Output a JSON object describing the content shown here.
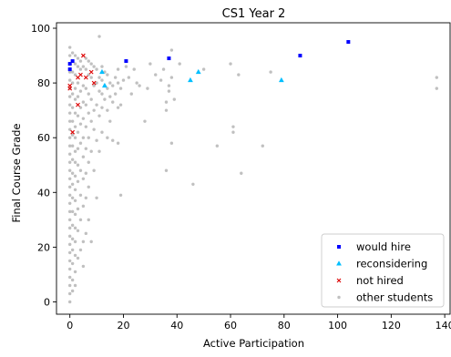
{
  "chart_data": {
    "type": "scatter",
    "title": "CS1 Year 2",
    "xlabel": "Active Participation",
    "ylabel": "Final Course Grade",
    "xlim": [
      -5,
      142
    ],
    "ylim": [
      -4.5,
      102
    ],
    "xticks": [
      0,
      20,
      40,
      60,
      80,
      100,
      120,
      140
    ],
    "yticks": [
      0,
      20,
      40,
      60,
      80,
      100
    ],
    "grid": false,
    "legend_position": "lower-right",
    "series": [
      {
        "name": "would hire",
        "marker": "square",
        "color": "#0000ff",
        "points": [
          [
            0,
            85
          ],
          [
            0,
            87
          ],
          [
            1,
            88
          ],
          [
            21,
            88
          ],
          [
            37,
            89
          ],
          [
            86,
            90
          ],
          [
            104,
            95
          ]
        ]
      },
      {
        "name": "reconsidering",
        "marker": "triangle",
        "color": "#00bfff",
        "points": [
          [
            12,
            84
          ],
          [
            13,
            79
          ],
          [
            45,
            81
          ],
          [
            48,
            84
          ],
          [
            79,
            81
          ]
        ]
      },
      {
        "name": "not hired",
        "marker": "x",
        "color": "#dd0000",
        "points": [
          [
            0,
            78
          ],
          [
            0,
            79
          ],
          [
            1,
            62
          ],
          [
            3,
            82
          ],
          [
            3,
            72
          ],
          [
            4,
            83
          ],
          [
            5,
            90
          ],
          [
            6,
            82
          ],
          [
            8,
            84
          ],
          [
            9,
            80
          ]
        ]
      },
      {
        "name": "other students",
        "marker": "dot",
        "color": "#c0c0c0",
        "points": [
          [
            0,
            0
          ],
          [
            0,
            3
          ],
          [
            0,
            6
          ],
          [
            0,
            9
          ],
          [
            0,
            12
          ],
          [
            0,
            15
          ],
          [
            0,
            18
          ],
          [
            0,
            21
          ],
          [
            0,
            24
          ],
          [
            0,
            27
          ],
          [
            0,
            30
          ],
          [
            0,
            33
          ],
          [
            0,
            36
          ],
          [
            0,
            39
          ],
          [
            0,
            42
          ],
          [
            0,
            45
          ],
          [
            0,
            48
          ],
          [
            0,
            51
          ],
          [
            0,
            54
          ],
          [
            0,
            57
          ],
          [
            0,
            60
          ],
          [
            0,
            63
          ],
          [
            0,
            66
          ],
          [
            0,
            69
          ],
          [
            0,
            72
          ],
          [
            0,
            75
          ],
          [
            0,
            78
          ],
          [
            0,
            81
          ],
          [
            0,
            84
          ],
          [
            0,
            87
          ],
          [
            0,
            90
          ],
          [
            0,
            93
          ],
          [
            1,
            4
          ],
          [
            1,
            8
          ],
          [
            1,
            14
          ],
          [
            1,
            19
          ],
          [
            1,
            23
          ],
          [
            1,
            28
          ],
          [
            1,
            33
          ],
          [
            1,
            38
          ],
          [
            1,
            43
          ],
          [
            1,
            47
          ],
          [
            1,
            52
          ],
          [
            1,
            57
          ],
          [
            1,
            61
          ],
          [
            1,
            66
          ],
          [
            1,
            71
          ],
          [
            1,
            76
          ],
          [
            1,
            80
          ],
          [
            1,
            84
          ],
          [
            1,
            88
          ],
          [
            1,
            91
          ],
          [
            2,
            6
          ],
          [
            2,
            11
          ],
          [
            2,
            17
          ],
          [
            2,
            22
          ],
          [
            2,
            27
          ],
          [
            2,
            32
          ],
          [
            2,
            37
          ],
          [
            2,
            41
          ],
          [
            2,
            46
          ],
          [
            2,
            51
          ],
          [
            2,
            55
          ],
          [
            2,
            60
          ],
          [
            2,
            64
          ],
          [
            2,
            69
          ],
          [
            2,
            74
          ],
          [
            2,
            78
          ],
          [
            2,
            83
          ],
          [
            2,
            87
          ],
          [
            2,
            90
          ],
          [
            3,
            16
          ],
          [
            3,
            26
          ],
          [
            3,
            34
          ],
          [
            3,
            44
          ],
          [
            3,
            50
          ],
          [
            3,
            56
          ],
          [
            3,
            62
          ],
          [
            3,
            68
          ],
          [
            3,
            75
          ],
          [
            3,
            80
          ],
          [
            3,
            86
          ],
          [
            3,
            89
          ],
          [
            4,
            19
          ],
          [
            4,
            30
          ],
          [
            4,
            39
          ],
          [
            4,
            48
          ],
          [
            4,
            58
          ],
          [
            4,
            65
          ],
          [
            4,
            71
          ],
          [
            4,
            77
          ],
          [
            4,
            85
          ],
          [
            4,
            88
          ],
          [
            5,
            13
          ],
          [
            5,
            22
          ],
          [
            5,
            35
          ],
          [
            5,
            45
          ],
          [
            5,
            53
          ],
          [
            5,
            60
          ],
          [
            5,
            67
          ],
          [
            5,
            73
          ],
          [
            5,
            79
          ],
          [
            5,
            86
          ],
          [
            6,
            25
          ],
          [
            6,
            38
          ],
          [
            6,
            47
          ],
          [
            6,
            56
          ],
          [
            6,
            64
          ],
          [
            6,
            72
          ],
          [
            6,
            78
          ],
          [
            6,
            85
          ],
          [
            6,
            89
          ],
          [
            7,
            30
          ],
          [
            7,
            42
          ],
          [
            7,
            51
          ],
          [
            7,
            60
          ],
          [
            7,
            69
          ],
          [
            7,
            76
          ],
          [
            7,
            83
          ],
          [
            7,
            88
          ],
          [
            8,
            22
          ],
          [
            8,
            55
          ],
          [
            8,
            66
          ],
          [
            8,
            74
          ],
          [
            8,
            82
          ],
          [
            8,
            87
          ],
          [
            9,
            48
          ],
          [
            9,
            63
          ],
          [
            9,
            70
          ],
          [
            9,
            79
          ],
          [
            9,
            86
          ],
          [
            10,
            38
          ],
          [
            10,
            59
          ],
          [
            10,
            72
          ],
          [
            10,
            80
          ],
          [
            10,
            85
          ],
          [
            11,
            55
          ],
          [
            11,
            68
          ],
          [
            11,
            77
          ],
          [
            11,
            82
          ],
          [
            11,
            97
          ],
          [
            12,
            62
          ],
          [
            12,
            71
          ],
          [
            12,
            76
          ],
          [
            12,
            81
          ],
          [
            12,
            86
          ],
          [
            13,
            74
          ],
          [
            13,
            79
          ],
          [
            13,
            84
          ],
          [
            14,
            60
          ],
          [
            14,
            70
          ],
          [
            14,
            78
          ],
          [
            14,
            83
          ],
          [
            15,
            66
          ],
          [
            15,
            75
          ],
          [
            15,
            80
          ],
          [
            16,
            59
          ],
          [
            16,
            73
          ],
          [
            16,
            79
          ],
          [
            17,
            76
          ],
          [
            17,
            82
          ],
          [
            18,
            58
          ],
          [
            18,
            71
          ],
          [
            18,
            80
          ],
          [
            18,
            85
          ],
          [
            19,
            39
          ],
          [
            19,
            72
          ],
          [
            19,
            78
          ],
          [
            20,
            81
          ],
          [
            21,
            86
          ],
          [
            22,
            82
          ],
          [
            23,
            76
          ],
          [
            24,
            85
          ],
          [
            25,
            80
          ],
          [
            26,
            79
          ],
          [
            28,
            66
          ],
          [
            29,
            78
          ],
          [
            30,
            87
          ],
          [
            32,
            83
          ],
          [
            34,
            81
          ],
          [
            35,
            85
          ],
          [
            36,
            70
          ],
          [
            36,
            73
          ],
          [
            37,
            77
          ],
          [
            37,
            79
          ],
          [
            38,
            82
          ],
          [
            38,
            92
          ],
          [
            39,
            74
          ],
          [
            41,
            87
          ],
          [
            36,
            48
          ],
          [
            38,
            58
          ],
          [
            46,
            43
          ],
          [
            50,
            85
          ],
          [
            55,
            57
          ],
          [
            60,
            87
          ],
          [
            61,
            64
          ],
          [
            61,
            62
          ],
          [
            63,
            83
          ],
          [
            64,
            47
          ],
          [
            72,
            57
          ],
          [
            75,
            84
          ],
          [
            137,
            82
          ],
          [
            137,
            78
          ]
        ]
      }
    ]
  }
}
